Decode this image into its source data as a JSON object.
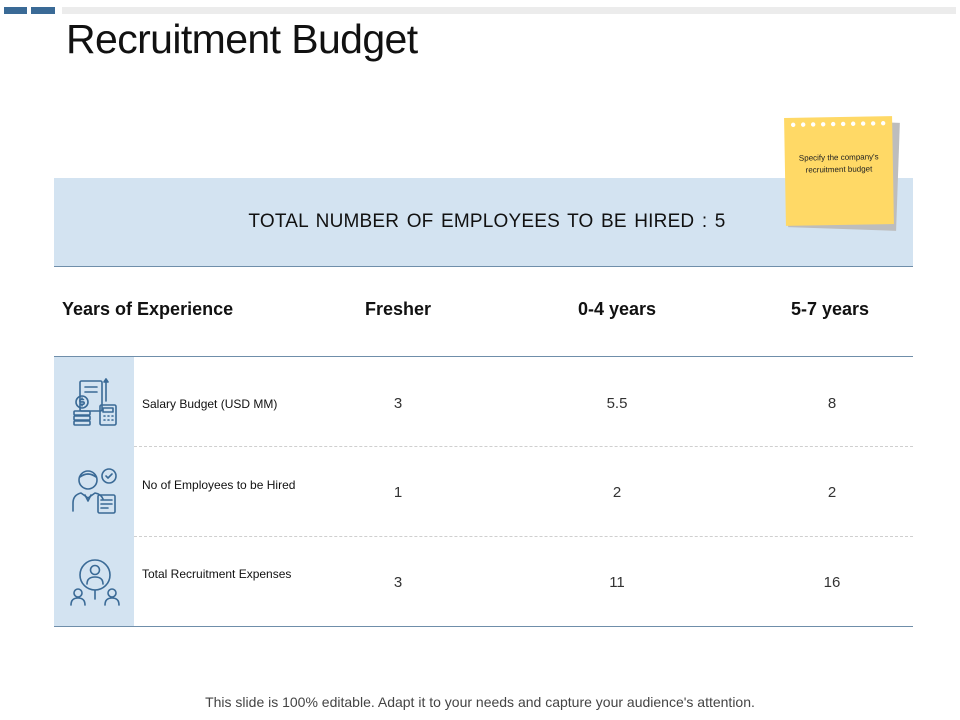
{
  "slide": {
    "title": "Recruitment Budget",
    "accent_color": "#3a6a96",
    "band_color": "#d3e3f1"
  },
  "header": {
    "text": "TOTAL NUMBER OF EMPLOYEES TO BE HIRED : 5"
  },
  "sticky_note": {
    "text": "Specify the company's recruitment budget",
    "color": "#ffd966"
  },
  "table": {
    "columns": [
      "Years of Experience",
      "Fresher",
      "0-4 years",
      "5-7 years"
    ],
    "rows": [
      {
        "icon": "salary-budget-icon",
        "label": "Salary Budget (USD MM)",
        "values": [
          "3",
          "5.5",
          "8"
        ]
      },
      {
        "icon": "employee-hire-icon",
        "label": "No of Employees to be Hired",
        "values": [
          "1",
          "2",
          "2"
        ]
      },
      {
        "icon": "recruitment-search-icon",
        "label": "Total Recruitment Expenses",
        "values": [
          "3",
          "11",
          "16"
        ]
      }
    ]
  },
  "footer": {
    "text": "This slide is 100% editable. Adapt it to your needs and capture your audience's attention."
  }
}
